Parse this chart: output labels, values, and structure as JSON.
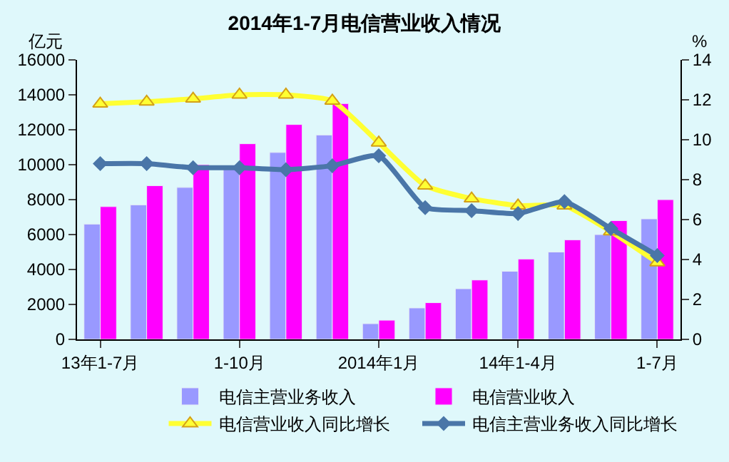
{
  "chart_data": {
    "type": "bar",
    "title": "2014年1-7月电信营业收入情况",
    "ylabel": "亿元",
    "y2label": "%",
    "categories": [
      "13年1-7月",
      null,
      null,
      "1-10月",
      null,
      null,
      "2014年1月",
      null,
      null,
      "14年1-4月",
      null,
      null,
      "1-7月"
    ],
    "series": [
      {
        "name": "电信主营业务收入",
        "color": "#9999ff",
        "values": [
          6600,
          7700,
          8700,
          9800,
          10700,
          11700,
          900,
          1800,
          2900,
          3900,
          5000,
          6000,
          6900
        ]
      },
      {
        "name": "电信营业收入",
        "color": "#ff00ff",
        "values": [
          7600,
          8800,
          10000,
          11200,
          12300,
          13500,
          1100,
          2100,
          3400,
          4600,
          5700,
          6800,
          8000
        ]
      },
      {
        "name": "电信营业收入同比增长",
        "type": "line",
        "axis": "y2",
        "color": "#ffff33",
        "marker": "triangle",
        "values": [
          11.8,
          11.9,
          12.05,
          12.25,
          12.25,
          11.95,
          9.85,
          7.7,
          7.05,
          6.7,
          6.7,
          5.4,
          3.85
        ]
      },
      {
        "name": "电信主营业务收入同比增长",
        "type": "line",
        "axis": "y2",
        "color": "#4a76a8",
        "marker": "diamond",
        "values": [
          8.8,
          8.8,
          8.6,
          8.6,
          8.5,
          8.7,
          9.2,
          6.6,
          6.45,
          6.3,
          6.9,
          5.55,
          4.2
        ]
      }
    ],
    "ylim": [
      0,
      16000
    ],
    "yticks": [
      0,
      2000,
      4000,
      6000,
      8000,
      10000,
      12000,
      14000,
      16000
    ],
    "y2lim": [
      0,
      14
    ],
    "y2ticks": [
      0,
      2,
      4,
      6,
      8,
      10,
      12,
      14
    ],
    "grid": false,
    "legend": "bottom"
  }
}
